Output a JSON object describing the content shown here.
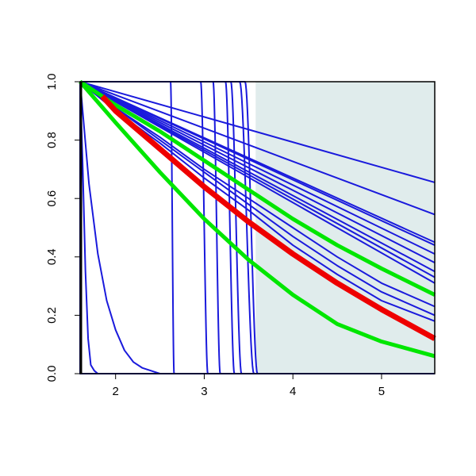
{
  "chart_data": {
    "type": "line",
    "title": "",
    "xlabel": "",
    "ylabel": "",
    "xlim": [
      1.6,
      5.6
    ],
    "ylim": [
      0.0,
      1.0
    ],
    "x_ticks": [
      2,
      3,
      4,
      5
    ],
    "y_ticks": [
      0.0,
      0.2,
      0.4,
      0.6,
      0.8,
      1.0
    ],
    "x_tick_labels": [
      "2",
      "3",
      "4",
      "5"
    ],
    "y_tick_labels": [
      "0.0",
      "0.2",
      "0.4",
      "0.6",
      "0.8",
      "1.0"
    ],
    "grid": false,
    "shaded_region": {
      "x_start": 3.58,
      "x_end": 5.6,
      "color": "#e0ecec"
    },
    "series": [
      {
        "role": "step",
        "color": "#1a1adc",
        "x0": 1.6,
        "x1": 1.6,
        "y0": 1.0,
        "y1": 0.0
      },
      {
        "role": "step",
        "color": "#1a1adc",
        "x0": 2.62,
        "x1": 2.66,
        "y0": 1.0,
        "y1": 0.0
      },
      {
        "role": "step",
        "color": "#1a1adc",
        "x0": 2.96,
        "x1": 3.04,
        "y0": 1.0,
        "y1": 0.0
      },
      {
        "role": "step",
        "color": "#1a1adc",
        "x0": 3.1,
        "x1": 3.18,
        "y0": 1.0,
        "y1": 0.0
      },
      {
        "role": "step",
        "color": "#1a1adc",
        "x0": 3.24,
        "x1": 3.34,
        "y0": 1.0,
        "y1": 0.0
      },
      {
        "role": "step",
        "color": "#1a1adc",
        "x0": 3.3,
        "x1": 3.42,
        "y0": 1.0,
        "y1": 0.0
      },
      {
        "role": "step",
        "color": "#1a1adc",
        "x0": 3.4,
        "x1": 3.56,
        "y0": 1.0,
        "y1": 0.0
      },
      {
        "role": "step",
        "color": "#1a1adc",
        "x0": 3.46,
        "x1": 3.6,
        "y0": 1.0,
        "y1": 0.0
      },
      {
        "role": "decay",
        "color": "#1a1adc",
        "x": [
          1.6,
          1.63,
          1.66,
          1.69,
          1.72,
          1.76,
          1.8
        ],
        "y": [
          1.0,
          0.7,
          0.35,
          0.12,
          0.03,
          0.01,
          0.0
        ]
      },
      {
        "role": "decay",
        "color": "#1a1adc",
        "x": [
          1.6,
          1.7,
          1.8,
          1.9,
          2.0,
          2.1,
          2.2,
          2.3,
          2.4,
          2.5,
          2.6
        ],
        "y": [
          1.0,
          0.65,
          0.41,
          0.25,
          0.15,
          0.08,
          0.04,
          0.02,
          0.01,
          0.0,
          0.0
        ]
      },
      {
        "role": "linear",
        "color": "#1a1adc",
        "x": [
          1.6,
          5.6
        ],
        "y": [
          1.0,
          0.655
        ]
      },
      {
        "role": "linear",
        "color": "#1a1adc",
        "x": [
          1.6,
          5.6
        ],
        "y": [
          1.0,
          0.545
        ]
      },
      {
        "role": "linear",
        "color": "#1a1adc",
        "x": [
          1.6,
          5.6
        ],
        "y": [
          1.0,
          0.45
        ]
      },
      {
        "role": "linear",
        "color": "#1a1adc",
        "x": [
          1.6,
          5.6
        ],
        "y": [
          1.0,
          0.44
        ]
      },
      {
        "role": "linear",
        "color": "#1a1adc",
        "x": [
          1.6,
          5.6
        ],
        "y": [
          1.0,
          0.41
        ]
      },
      {
        "role": "linear",
        "color": "#1a1adc",
        "x": [
          1.6,
          5.6
        ],
        "y": [
          1.0,
          0.38
        ]
      },
      {
        "role": "linear",
        "color": "#1a1adc",
        "x": [
          1.6,
          5.6
        ],
        "y": [
          1.0,
          0.35
        ]
      },
      {
        "role": "linear",
        "color": "#1a1adc",
        "x": [
          1.6,
          5.6
        ],
        "y": [
          1.0,
          0.33
        ]
      },
      {
        "role": "linear",
        "color": "#1a1adc",
        "x": [
          1.6,
          5.6
        ],
        "y": [
          1.0,
          0.31
        ]
      },
      {
        "role": "curve",
        "color": "#1a1adc",
        "x": [
          1.6,
          2.0,
          2.5,
          3.0,
          3.5,
          4.0,
          4.5,
          5.0,
          5.6
        ],
        "y": [
          1.0,
          0.9,
          0.79,
          0.67,
          0.56,
          0.44,
          0.34,
          0.25,
          0.18
        ]
      },
      {
        "role": "curve",
        "color": "#1a1adc",
        "x": [
          1.6,
          2.0,
          2.5,
          3.0,
          3.5,
          4.0,
          4.5,
          5.0,
          5.6
        ],
        "y": [
          1.0,
          0.91,
          0.8,
          0.69,
          0.58,
          0.47,
          0.37,
          0.28,
          0.2
        ]
      },
      {
        "role": "curve",
        "color": "#1a1adc",
        "x": [
          1.6,
          2.0,
          2.5,
          3.0,
          3.5,
          4.0,
          4.5,
          5.0,
          5.6
        ],
        "y": [
          1.0,
          0.91,
          0.81,
          0.7,
          0.6,
          0.5,
          0.4,
          0.31,
          0.23
        ]
      },
      {
        "role": "green",
        "color": "#00e600",
        "x": [
          1.6,
          2.0,
          2.5,
          3.0,
          3.5,
          4.0,
          4.5,
          5.0,
          5.6
        ],
        "y": [
          1.0,
          0.92,
          0.83,
          0.73,
          0.63,
          0.53,
          0.44,
          0.36,
          0.27
        ]
      },
      {
        "role": "green",
        "color": "#00e600",
        "x": [
          1.6,
          2.0,
          2.5,
          3.0,
          3.5,
          4.0,
          4.5,
          5.0,
          5.6
        ],
        "y": [
          1.0,
          0.86,
          0.69,
          0.53,
          0.39,
          0.27,
          0.17,
          0.11,
          0.06
        ]
      },
      {
        "role": "red",
        "color": "#ee0000",
        "x": [
          1.85,
          2.0,
          2.5,
          3.0,
          3.5,
          4.0,
          4.5,
          5.0,
          5.6
        ],
        "y": [
          0.95,
          0.9,
          0.77,
          0.64,
          0.52,
          0.41,
          0.31,
          0.22,
          0.12
        ]
      }
    ]
  }
}
